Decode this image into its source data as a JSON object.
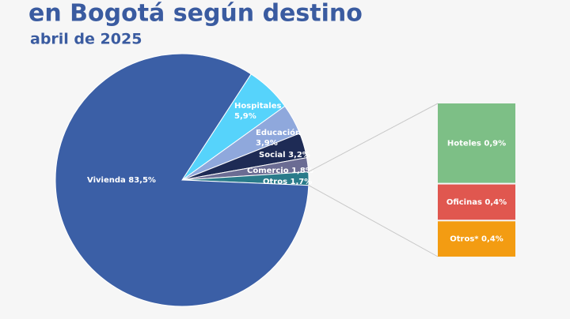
{
  "chart_data": {
    "type": "pie",
    "title": "en Bogotá según destino",
    "subtitle": "abril de 2025",
    "categories": [
      "Vivienda",
      "Hospitales",
      "Educación",
      "Social",
      "Comercio",
      "Otros"
    ],
    "values": [
      83.5,
      5.9,
      3.9,
      3.2,
      1.8,
      1.7
    ],
    "value_labels": [
      "83,5%",
      "5,9%",
      "3,9%",
      "3,2%",
      "1,8%",
      "1,7%"
    ],
    "colors": [
      "#3b5fa6",
      "#56d3fb",
      "#8fa8dc",
      "#1e2b55",
      "#6b6c93",
      "#2a7b8a"
    ],
    "breakdown": {
      "categories": [
        "Hoteles",
        "Oficinas",
        "Otros*"
      ],
      "values": [
        0.9,
        0.4,
        0.4
      ],
      "value_labels": [
        "0,9%",
        "0,4%",
        "0,4%"
      ],
      "colors": [
        "#7dbf86",
        "#e0574f",
        "#f39c12"
      ]
    }
  }
}
